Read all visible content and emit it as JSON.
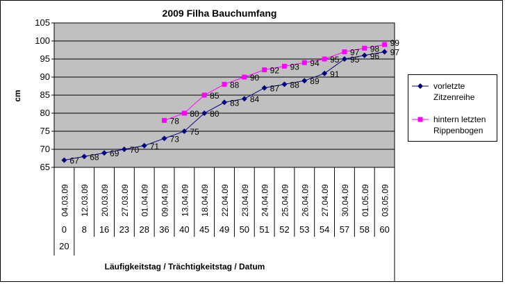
{
  "chart_data": {
    "type": "line",
    "title": "2009 Filha Bauchumfang",
    "xlabel": "Läufigkeitstag / Trächtigkeitstag / Datum",
    "ylabel": "cm",
    "ylim": [
      65,
      105
    ],
    "yticks": [
      65,
      70,
      75,
      80,
      85,
      90,
      95,
      100,
      105
    ],
    "grid": true,
    "legend_position": "right",
    "categories": [
      "04.03.09",
      "12.03.09",
      "20.03.09",
      "27.03.09",
      "01.04.09",
      "09.04.09",
      "13.04.09",
      "18.04.09",
      "22.04.09",
      "23.04.09",
      "24.04.09",
      "25.04.09",
      "26.04.09",
      "27.04.09",
      "30.04.09",
      "01.05.09",
      "03.05.09"
    ],
    "days": [
      "0",
      "8",
      "16",
      "23",
      "28",
      "36",
      "40",
      "45",
      "49",
      "50",
      "51",
      "52",
      "53",
      "54",
      "57",
      "58",
      "60"
    ],
    "extra_row": [
      "20"
    ],
    "series": [
      {
        "name": "vorletzte Zitzenreihe",
        "color": "#000080",
        "marker": "diamond",
        "values": [
          67,
          68,
          69,
          70,
          71,
          73,
          75,
          80,
          83,
          84,
          87,
          88,
          89,
          91,
          95,
          96,
          97
        ]
      },
      {
        "name": "hintern letzten Rippenbogen",
        "color": "#FF00FF",
        "marker": "square",
        "values": [
          null,
          null,
          null,
          null,
          null,
          78,
          80,
          85,
          88,
          90,
          92,
          93,
          94,
          95,
          97,
          98,
          99
        ]
      }
    ]
  }
}
